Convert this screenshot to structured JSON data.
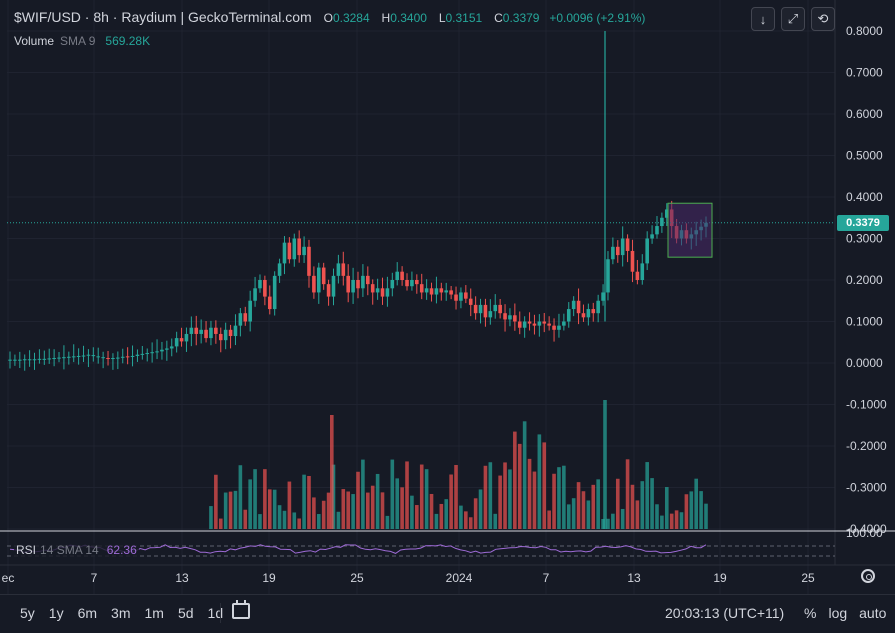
{
  "header": {
    "symbol": "$WIF/USD · 8h · Raydium | GeckoTerminal.com",
    "o_label": "O",
    "o_value": "0.3284",
    "h_label": "H",
    "h_value": "0.3400",
    "l_label": "L",
    "l_value": "0.3151",
    "c_label": "C",
    "c_value": "0.3379",
    "change": "+0.0096 (+2.91%)"
  },
  "volume_legend": {
    "name": "Volume",
    "params": "SMA 9",
    "value": "569.28K"
  },
  "rsi_legend": {
    "name": "RSI",
    "params": "14 SMA 14",
    "value": "62.36"
  },
  "toolbar": {
    "download_icon": "arrow-down-icon",
    "fullscreen_icon": "expand-icon",
    "screenshot_icon": "camera-icon"
  },
  "price_badge": "0.3379",
  "colors": {
    "up": "#26a69a",
    "down": "#ef5350",
    "bg": "#161a25",
    "grid": "#1f2330",
    "rsi": "#9e6bd6",
    "highlight": "#4caf50"
  },
  "chart_data": {
    "type": "candlestick",
    "y_axis": {
      "ticks": [
        "0.8000",
        "0.7000",
        "0.6000",
        "0.5000",
        "0.4000",
        "0.3000",
        "0.2000",
        "0.1000",
        "0.0000",
        "-0.1000",
        "-0.2000",
        "-0.3000",
        "-0.4000"
      ],
      "range": [
        -0.4,
        0.8
      ]
    },
    "rsi_axis": {
      "ticks": [
        "100.00"
      ]
    },
    "x_axis": {
      "ticks": [
        "ec",
        "7",
        "13",
        "19",
        "25",
        "2024",
        "7",
        "13",
        "19",
        "25"
      ]
    },
    "last_price": 0.3379,
    "price_series": [
      [
        0.008,
        0.008
      ],
      [
        0.008,
        0.008
      ],
      [
        0.008,
        0.008
      ],
      [
        0.009,
        0.009
      ],
      [
        0.009,
        0.009
      ],
      [
        0.009,
        0.009
      ],
      [
        0.01,
        0.01
      ],
      [
        0.01,
        0.01
      ],
      [
        0.011,
        0.011
      ],
      [
        0.012,
        0.012
      ],
      [
        0.013,
        0.013
      ],
      [
        0.014,
        0.014
      ],
      [
        0.015,
        0.015
      ],
      [
        0.016,
        0.016
      ],
      [
        0.017,
        0.017
      ],
      [
        0.018,
        0.018
      ],
      [
        0.02,
        0.02
      ],
      [
        0.018,
        0.019
      ],
      [
        0.015,
        0.016
      ],
      [
        0.013,
        0.014
      ],
      [
        0.012,
        0.011
      ],
      [
        0.012,
        0.012
      ],
      [
        0.013,
        0.013
      ],
      [
        0.014,
        0.015
      ],
      [
        0.016,
        0.015
      ],
      [
        0.015,
        0.017
      ],
      [
        0.017,
        0.02
      ],
      [
        0.02,
        0.022
      ],
      [
        0.022,
        0.024
      ],
      [
        0.024,
        0.026
      ],
      [
        0.026,
        0.028
      ],
      [
        0.028,
        0.032
      ],
      [
        0.032,
        0.035
      ],
      [
        0.035,
        0.04
      ],
      [
        0.04,
        0.06
      ],
      [
        0.06,
        0.052
      ],
      [
        0.052,
        0.07
      ],
      [
        0.07,
        0.085
      ],
      [
        0.085,
        0.07
      ],
      [
        0.07,
        0.08
      ],
      [
        0.08,
        0.06
      ],
      [
        0.06,
        0.085
      ],
      [
        0.085,
        0.07
      ],
      [
        0.07,
        0.055
      ],
      [
        0.055,
        0.08
      ],
      [
        0.08,
        0.065
      ],
      [
        0.065,
        0.09
      ],
      [
        0.09,
        0.12
      ],
      [
        0.12,
        0.1
      ],
      [
        0.1,
        0.15
      ],
      [
        0.15,
        0.18
      ],
      [
        0.18,
        0.2
      ],
      [
        0.2,
        0.16
      ],
      [
        0.16,
        0.13
      ],
      [
        0.13,
        0.21
      ],
      [
        0.21,
        0.24
      ],
      [
        0.24,
        0.29
      ],
      [
        0.29,
        0.25
      ],
      [
        0.25,
        0.3
      ],
      [
        0.3,
        0.26
      ],
      [
        0.26,
        0.28
      ],
      [
        0.28,
        0.21
      ],
      [
        0.21,
        0.17
      ],
      [
        0.17,
        0.23
      ],
      [
        0.23,
        0.19
      ],
      [
        0.19,
        0.16
      ],
      [
        0.16,
        0.21
      ],
      [
        0.21,
        0.24
      ],
      [
        0.24,
        0.21
      ],
      [
        0.21,
        0.17
      ],
      [
        0.17,
        0.2
      ],
      [
        0.2,
        0.18
      ],
      [
        0.18,
        0.21
      ],
      [
        0.21,
        0.19
      ],
      [
        0.19,
        0.17
      ],
      [
        0.17,
        0.18
      ],
      [
        0.18,
        0.16
      ],
      [
        0.16,
        0.18
      ],
      [
        0.18,
        0.2
      ],
      [
        0.2,
        0.22
      ],
      [
        0.22,
        0.2
      ],
      [
        0.2,
        0.185
      ],
      [
        0.185,
        0.2
      ],
      [
        0.2,
        0.19
      ],
      [
        0.19,
        0.17
      ],
      [
        0.17,
        0.18
      ],
      [
        0.18,
        0.165
      ],
      [
        0.165,
        0.18
      ],
      [
        0.18,
        0.17
      ],
      [
        0.17,
        0.175
      ],
      [
        0.175,
        0.165
      ],
      [
        0.165,
        0.15
      ],
      [
        0.15,
        0.17
      ],
      [
        0.17,
        0.155
      ],
      [
        0.155,
        0.14
      ],
      [
        0.14,
        0.12
      ],
      [
        0.12,
        0.14
      ],
      [
        0.14,
        0.11
      ],
      [
        0.11,
        0.125
      ],
      [
        0.125,
        0.14
      ],
      [
        0.14,
        0.12
      ],
      [
        0.12,
        0.105
      ],
      [
        0.105,
        0.115
      ],
      [
        0.115,
        0.1
      ],
      [
        0.1,
        0.085
      ],
      [
        0.085,
        0.1
      ],
      [
        0.1,
        0.095
      ],
      [
        0.095,
        0.09
      ],
      [
        0.09,
        0.1
      ],
      [
        0.1,
        0.095
      ],
      [
        0.095,
        0.09
      ],
      [
        0.09,
        0.08
      ],
      [
        0.08,
        0.09
      ],
      [
        0.09,
        0.1
      ],
      [
        0.1,
        0.13
      ],
      [
        0.13,
        0.15
      ],
      [
        0.15,
        0.12
      ],
      [
        0.12,
        0.11
      ],
      [
        0.11,
        0.13
      ],
      [
        0.13,
        0.12
      ],
      [
        0.12,
        0.15
      ],
      [
        0.15,
        0.17
      ],
      [
        0.17,
        0.25
      ],
      [
        0.25,
        0.28
      ],
      [
        0.28,
        0.26
      ],
      [
        0.26,
        0.3
      ],
      [
        0.3,
        0.27
      ],
      [
        0.27,
        0.22
      ],
      [
        0.22,
        0.2
      ],
      [
        0.2,
        0.24
      ],
      [
        0.24,
        0.3
      ],
      [
        0.3,
        0.31
      ],
      [
        0.31,
        0.33
      ],
      [
        0.33,
        0.35
      ],
      [
        0.35,
        0.37
      ],
      [
        0.37,
        0.33
      ],
      [
        0.33,
        0.3
      ],
      [
        0.3,
        0.32
      ],
      [
        0.32,
        0.3
      ],
      [
        0.3,
        0.31
      ],
      [
        0.31,
        0.32
      ],
      [
        0.32,
        0.3284
      ],
      [
        0.3284,
        0.3379
      ]
    ],
    "spike_high": 0.8
  }
}
